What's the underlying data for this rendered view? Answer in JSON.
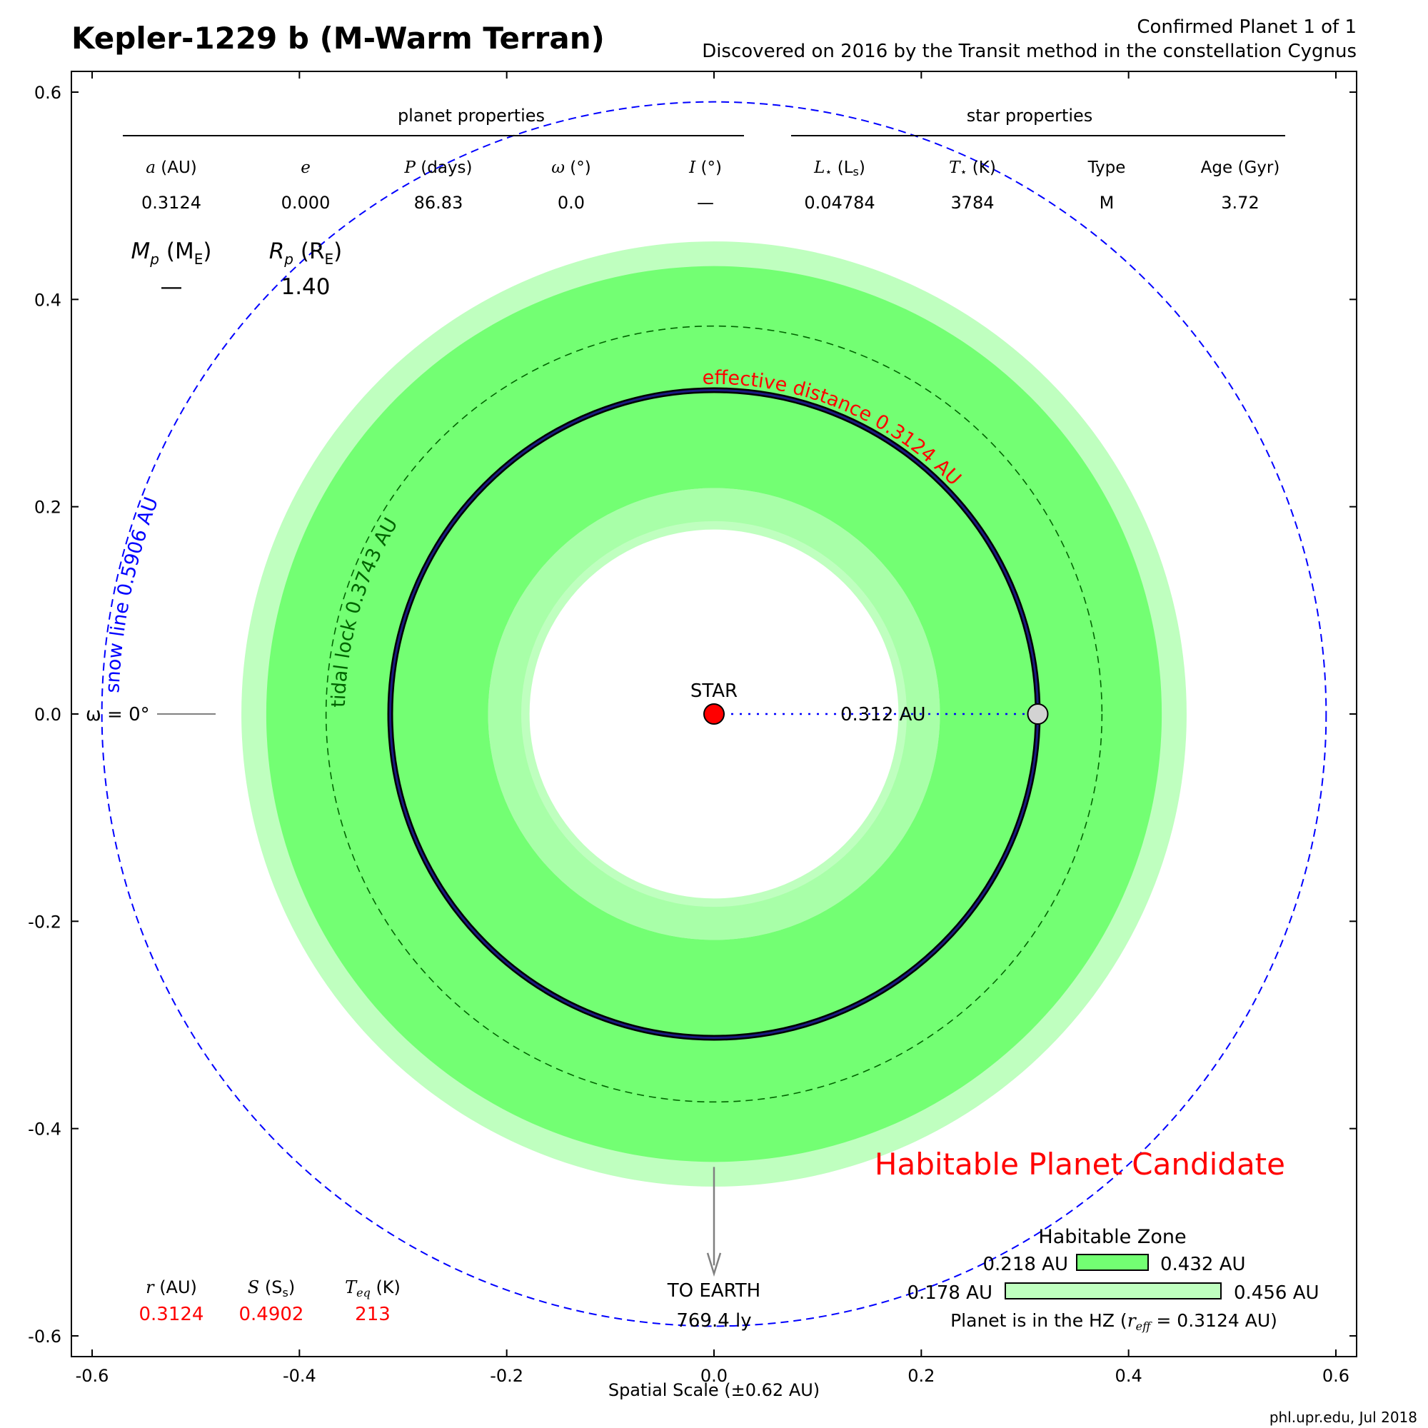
{
  "header": {
    "title": "Kepler-1229 b (M-Warm Terran)",
    "confirmed": "Confirmed Planet 1 of 1",
    "discovered": "Discovered on 2016 by the Transit method in the constellation Cygnus"
  },
  "tables": {
    "planet_header": "planet properties",
    "star_header": "star properties",
    "planet_columns": [
      {
        "sym": "a",
        "unit": " (AU)",
        "value": "0.3124"
      },
      {
        "sym": "e",
        "unit": "",
        "value": "0.000"
      },
      {
        "sym": "P",
        "unit": " (days)",
        "value": "86.83"
      },
      {
        "sym": "ω",
        "unit": " (°)",
        "value": "0.0"
      },
      {
        "sym": "I",
        "unit": " (°)",
        "value": "—"
      }
    ],
    "star_columns": [
      {
        "sym": "L",
        "sub": "⋆",
        "unit": " (L",
        "unitsub": "s",
        "unitend": ")",
        "value": "0.04784"
      },
      {
        "sym": "T",
        "sub": "⋆",
        "unit": " (K)",
        "value": "3784"
      },
      {
        "sym": "",
        "unit": "Type",
        "value": "M"
      },
      {
        "sym": "",
        "unit": "Age (Gyr)",
        "value": "3.72"
      }
    ],
    "mass": {
      "sym": "M",
      "sub": "p",
      "unit": " (M",
      "unitsub": "E",
      "unitend": ")",
      "value": "—"
    },
    "radius": {
      "sym": "R",
      "sub": "p",
      "unit": " (R",
      "unitsub": "E",
      "unitend": ")",
      "value": "1.40"
    }
  },
  "labels": {
    "star": "STAR",
    "distance": "0.312 AU",
    "omega": "ω = 0°",
    "snow_line": "snow line 0.5906 AU",
    "tidal_lock": "tidal lock 0.3743 AU",
    "effective_distance": "effective distance 0.3124 AU",
    "to_earth": "TO EARTH",
    "earth_distance": "769.4 ly",
    "candidate": "Habitable Planet Candidate",
    "footer": "phl.upr.edu, Jul 2018"
  },
  "bottom_stats": [
    {
      "sym": "r",
      "sub": "",
      "unit": " (AU)",
      "value": "0.3124"
    },
    {
      "sym": "S",
      "sub": "",
      "unit": " (S",
      "unitsub": "s",
      "unitend": ")",
      "value": "0.4902"
    },
    {
      "sym": "T",
      "sub": "eq",
      "unit": " (K)",
      "value": "213"
    }
  ],
  "hz_legend": {
    "title": "Habitable Zone",
    "conservative": {
      "inner": 0.218,
      "outer": 0.432,
      "inner_label": "0.218 AU",
      "outer_label": "0.432 AU"
    },
    "optimistic": {
      "inner": 0.178,
      "outer": 0.456,
      "inner_label": "0.178 AU",
      "outer_label": "0.456 AU"
    },
    "status": "Planet is in the HZ (",
    "status_sym": "r",
    "status_sub": "eff",
    "status_end": " = 0.3124 AU)"
  },
  "colors": {
    "optimistic_hz": "#bfffbf",
    "conservative_hz": "#73ff73",
    "orbit": "#1a1a80",
    "snow_line": "#0000ff",
    "star": "#ff0000",
    "planet": "#d3d3d3",
    "candidate": "#ff0000",
    "stats_values": "#ff0000",
    "tidal": "#006400"
  },
  "chart_data": {
    "type": "scatter",
    "xlabel": "Spatial Scale (±0.62 AU)",
    "ylabel": "",
    "xlim": [
      -0.62,
      0.62
    ],
    "ylim": [
      -0.62,
      0.62
    ],
    "xticks": [
      -0.6,
      -0.4,
      -0.2,
      0.0,
      0.2,
      0.4,
      0.6
    ],
    "xtick_labels": [
      "-0.6",
      "-0.4",
      "-0.2",
      "0.0",
      "0.2",
      "0.4",
      "0.6"
    ],
    "yticks": [
      0.6,
      0.4,
      0.2,
      0.0,
      -0.2,
      -0.4,
      -0.6
    ],
    "ytick_labels": [
      "0.6",
      "0.4",
      "0.2",
      "0.0",
      "-0.2",
      "-0.4",
      "-0.6"
    ],
    "optimistic_hz": [
      0.178,
      0.456
    ],
    "conservative_hz": [
      0.218,
      0.432
    ],
    "orbit_radius": 0.3124,
    "tidal_lock_radius": 0.3743,
    "snow_line_radius": 0.5906,
    "star": [
      0.0,
      0.0
    ],
    "planet": [
      0.3124,
      0.0
    ]
  }
}
